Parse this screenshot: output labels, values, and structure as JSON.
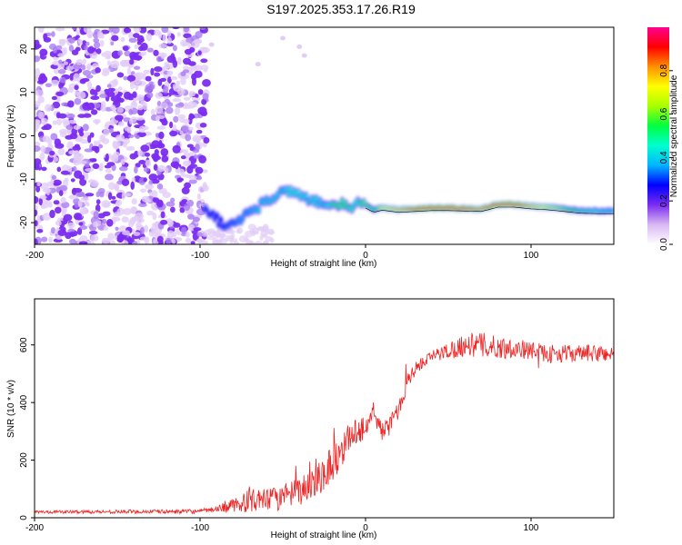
{
  "title": "S197.2025.353.17.26.R19",
  "chart_data": [
    {
      "type": "heatmap",
      "xlabel": "Height of straight line (km)",
      "ylabel": "Frequency (Hz)",
      "xlim": [
        -200,
        150
      ],
      "ylim": [
        -25,
        25
      ],
      "xticks": [
        -200,
        -100,
        0,
        100
      ],
      "yticks": [
        -20,
        -10,
        0,
        10,
        20
      ],
      "colorbar": {
        "label": "Normalized spectral amplitude",
        "range": [
          0,
          1
        ],
        "ticks": [
          "0.0",
          "0.2",
          "0.4",
          "0.6",
          "0.8"
        ],
        "colors": [
          "#ffffff",
          "#d9b8f2",
          "#7b2cf0",
          "#0000ff",
          "#00b4ff",
          "#00ffd0",
          "#00ff40",
          "#a8ff00",
          "#ffff00",
          "#ff9000",
          "#ff0000",
          "#ff0090"
        ]
      },
      "ridge": {
        "x": [
          -97,
          -92,
          -88,
          -84,
          -80,
          -75,
          -70,
          -65,
          -60,
          -55,
          -50,
          -45,
          -40,
          -35,
          -30,
          -25,
          -20,
          -15,
          -10,
          -5,
          0,
          5,
          10,
          20,
          30,
          40,
          50,
          60,
          70,
          80,
          90,
          100,
          110,
          120,
          130,
          140,
          150
        ],
        "y": [
          -17,
          -18,
          -20,
          -21,
          -20,
          -19,
          -17.5,
          -16.5,
          -15,
          -14,
          -13,
          -12.5,
          -13.5,
          -14.5,
          -15,
          -16,
          -16.5,
          -15.5,
          -17,
          -15.5,
          -16,
          -17,
          -16.5,
          -17,
          -16.8,
          -16.6,
          -16.6,
          -16.7,
          -16.8,
          -15.8,
          -15.8,
          -16.2,
          -16.4,
          -16.8,
          -17.2,
          -17.3,
          -17.3
        ],
        "amplitude": [
          0.3,
          0.25,
          0.25,
          0.3,
          0.32,
          0.35,
          0.35,
          0.4,
          0.4,
          0.42,
          0.4,
          0.45,
          0.45,
          0.42,
          0.42,
          0.4,
          0.5,
          0.55,
          0.5,
          0.45,
          0.6,
          0.5,
          0.7,
          0.8,
          0.9,
          0.95,
          0.95,
          0.9,
          0.85,
          0.95,
          0.95,
          0.8,
          0.7,
          0.6,
          0.5,
          0.45,
          0.4
        ]
      },
      "noise_region_x": [
        -200,
        -96
      ],
      "sparse_blobs": [
        {
          "x": -50,
          "y": 22.5
        },
        {
          "x": -40,
          "y": 20.5
        },
        {
          "x": -37,
          "y": 18.5
        },
        {
          "x": -65,
          "y": 16.5
        },
        {
          "x": -93,
          "y": 21
        }
      ]
    },
    {
      "type": "line",
      "xlabel": "Height of straight line (km)",
      "ylabel": "SNR (10 * v/v)",
      "xlim": [
        -200,
        150
      ],
      "ylim": [
        0,
        760
      ],
      "xticks": [
        -200,
        -100,
        0,
        100
      ],
      "yticks": [
        0,
        200,
        400,
        600
      ],
      "color": "#ee2222",
      "envelope": {
        "x": [
          -200,
          -100,
          -90,
          -80,
          -70,
          -60,
          -50,
          -40,
          -35,
          -30,
          -25,
          -20,
          -15,
          -10,
          -5,
          0,
          5,
          10,
          15,
          20,
          25,
          30,
          40,
          50,
          60,
          70,
          80,
          90,
          100,
          110,
          120,
          130,
          140,
          150
        ],
        "y": [
          20,
          22,
          30,
          40,
          60,
          60,
          70,
          90,
          110,
          140,
          160,
          190,
          230,
          280,
          300,
          320,
          360,
          300,
          320,
          380,
          470,
          520,
          560,
          580,
          600,
          600,
          590,
          590,
          580,
          570,
          570,
          570,
          570,
          570
        ],
        "amplitude": [
          5,
          8,
          10,
          25,
          40,
          40,
          45,
          50,
          55,
          65,
          70,
          70,
          60,
          50,
          45,
          50,
          40,
          30,
          35,
          35,
          30,
          25,
          20,
          30,
          40,
          45,
          40,
          35,
          30,
          30,
          30,
          30,
          30,
          30
        ]
      }
    }
  ]
}
